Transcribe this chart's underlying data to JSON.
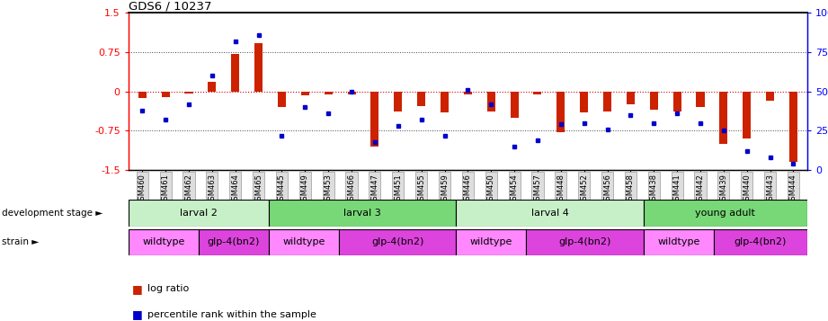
{
  "title": "GDS6 / 10237",
  "samples": [
    "GSM460",
    "GSM461",
    "GSM462",
    "GSM463",
    "GSM464",
    "GSM465",
    "GSM445",
    "GSM449",
    "GSM453",
    "GSM466",
    "GSM447",
    "GSM451",
    "GSM455",
    "GSM459",
    "GSM446",
    "GSM450",
    "GSM454",
    "GSM457",
    "GSM448",
    "GSM452",
    "GSM456",
    "GSM458",
    "GSM438",
    "GSM441",
    "GSM442",
    "GSM439",
    "GSM440",
    "GSM443",
    "GSM444"
  ],
  "log_ratio": [
    -0.12,
    -0.1,
    -0.04,
    0.18,
    0.72,
    0.92,
    -0.3,
    -0.07,
    -0.06,
    -0.06,
    -1.05,
    -0.38,
    -0.28,
    -0.4,
    -0.05,
    -0.38,
    -0.5,
    -0.06,
    -0.78,
    -0.4,
    -0.38,
    -0.24,
    -0.35,
    -0.38,
    -0.3,
    -1.0,
    -0.9,
    -0.18,
    -1.35
  ],
  "percentile": [
    38,
    32,
    42,
    60,
    82,
    86,
    22,
    40,
    36,
    50,
    18,
    28,
    32,
    22,
    51,
    42,
    15,
    19,
    29,
    30,
    26,
    35,
    30,
    36,
    30,
    25,
    12,
    8,
    4
  ],
  "dev_stages": [
    {
      "label": "larval 2",
      "start": 0,
      "end": 6,
      "color": "#c8f0c8"
    },
    {
      "label": "larval 3",
      "start": 6,
      "end": 14,
      "color": "#78d878"
    },
    {
      "label": "larval 4",
      "start": 14,
      "end": 22,
      "color": "#c8f0c8"
    },
    {
      "label": "young adult",
      "start": 22,
      "end": 29,
      "color": "#78d878"
    }
  ],
  "strains": [
    {
      "label": "wildtype",
      "start": 0,
      "end": 3,
      "color": "#ff88ff"
    },
    {
      "label": "glp-4(bn2)",
      "start": 3,
      "end": 6,
      "color": "#dd44dd"
    },
    {
      "label": "wildtype",
      "start": 6,
      "end": 9,
      "color": "#ff88ff"
    },
    {
      "label": "glp-4(bn2)",
      "start": 9,
      "end": 14,
      "color": "#dd44dd"
    },
    {
      "label": "wildtype",
      "start": 14,
      "end": 17,
      "color": "#ff88ff"
    },
    {
      "label": "glp-4(bn2)",
      "start": 17,
      "end": 22,
      "color": "#dd44dd"
    },
    {
      "label": "wildtype",
      "start": 22,
      "end": 25,
      "color": "#ff88ff"
    },
    {
      "label": "glp-4(bn2)",
      "start": 25,
      "end": 29,
      "color": "#dd44dd"
    }
  ],
  "ylim": [
    -1.5,
    1.5
  ],
  "yticks_left": [
    -1.5,
    -0.75,
    0.0,
    0.75,
    1.5
  ],
  "yticks_right": [
    0,
    25,
    50,
    75,
    100
  ],
  "bar_color": "#cc2200",
  "dot_color": "#0000cc",
  "hline_color": "#cc0000",
  "grid_color": "#444444"
}
